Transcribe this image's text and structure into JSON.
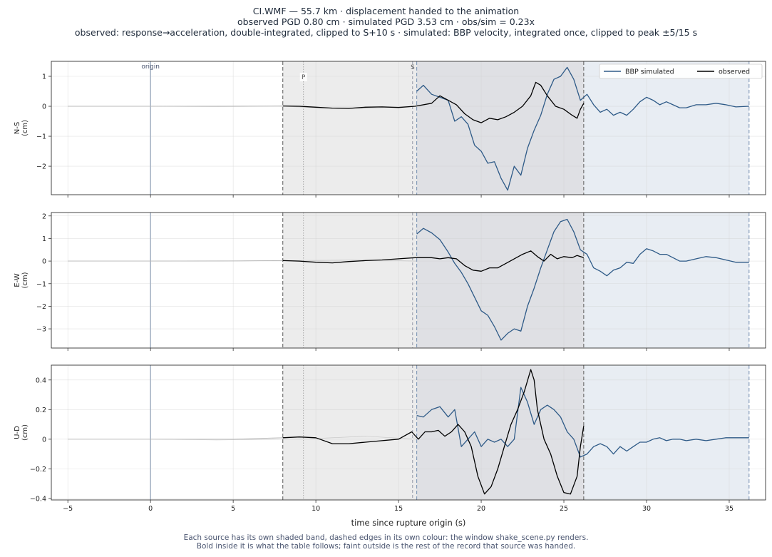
{
  "header": {
    "title": "CI.WMF  —  55.7 km   ·   displacement handed to the animation",
    "subtitle": "observed PGD 0.80 cm   ·   simulated PGD 3.53 cm   ·   obs/sim = 0.23x",
    "detail": "observed: response→acceleration, double-integrated, clipped to S+10 s   ·   simulated: BBP velocity, integrated once, clipped to peak ±5/15 s"
  },
  "footer": {
    "line1": "Each source has its own shaded band, dashed edges in its own colour: the window shake_scene.py renders.",
    "line2": "Bold inside it is what the table follows;   faint outside is the rest of the record that source was handed."
  },
  "colors": {
    "simulated": "#2e5a87",
    "observed": "#000000",
    "obs_band": "#ececec",
    "sim_band": "#e8edf3",
    "overlap_band": "#dfe0e4",
    "obs_edge": "#666666",
    "sim_edge": "#7f97b6",
    "origin_line": "#a9b5c6",
    "faint_trace": "#b8b8b8"
  },
  "chart_data": {
    "type": "line",
    "xlabel": "time since rupture origin (s)",
    "xlim": [
      -6,
      37.2
    ],
    "xticks": [
      -5,
      0,
      5,
      10,
      15,
      20,
      25,
      30,
      35
    ],
    "legend": {
      "placement": "top-right",
      "entries": [
        "BBP simulated",
        "observed"
      ]
    },
    "markers": {
      "origin": 0,
      "origin_label": "origin",
      "P": 9.25,
      "P_label": "P",
      "S": 15.85,
      "S_label": "S"
    },
    "windows": {
      "observed": [
        8.0,
        26.2
      ],
      "simulated": [
        16.1,
        36.2
      ]
    },
    "grid": true,
    "panels": [
      {
        "name": "N-S",
        "ylabel": [
          "N-S",
          "(cm)"
        ],
        "ylim": [
          -2.95,
          1.5
        ],
        "yticks": [
          -2,
          -1,
          0,
          1
        ],
        "observed": [
          [
            -5,
            0
          ],
          [
            0,
            0
          ],
          [
            5,
            0.005
          ],
          [
            8,
            0.01
          ],
          [
            9,
            0.0
          ],
          [
            10,
            -0.03
          ],
          [
            11,
            -0.06
          ],
          [
            12,
            -0.07
          ],
          [
            13,
            -0.03
          ],
          [
            14,
            -0.02
          ],
          [
            15,
            -0.04
          ],
          [
            16,
            0.0
          ],
          [
            17,
            0.1
          ],
          [
            17.5,
            0.35
          ],
          [
            18,
            0.2
          ],
          [
            18.5,
            0.05
          ],
          [
            19,
            -0.25
          ],
          [
            19.5,
            -0.45
          ],
          [
            20,
            -0.55
          ],
          [
            20.5,
            -0.4
          ],
          [
            21,
            -0.45
          ],
          [
            21.5,
            -0.35
          ],
          [
            22,
            -0.2
          ],
          [
            22.5,
            0.0
          ],
          [
            23,
            0.35
          ],
          [
            23.3,
            0.8
          ],
          [
            23.6,
            0.7
          ],
          [
            24,
            0.35
          ],
          [
            24.5,
            0.0
          ],
          [
            25,
            -0.1
          ],
          [
            25.5,
            -0.3
          ],
          [
            25.8,
            -0.4
          ],
          [
            26,
            -0.1
          ],
          [
            26.2,
            0.1
          ]
        ],
        "simulated": [
          [
            16.1,
            0.5
          ],
          [
            16.5,
            0.7
          ],
          [
            17,
            0.4
          ],
          [
            17.5,
            0.3
          ],
          [
            18,
            0.2
          ],
          [
            18.4,
            -0.5
          ],
          [
            18.8,
            -0.35
          ],
          [
            19.2,
            -0.6
          ],
          [
            19.6,
            -1.3
          ],
          [
            20,
            -1.5
          ],
          [
            20.4,
            -1.9
          ],
          [
            20.8,
            -1.85
          ],
          [
            21.2,
            -2.4
          ],
          [
            21.6,
            -2.8
          ],
          [
            22,
            -2.0
          ],
          [
            22.4,
            -2.3
          ],
          [
            22.8,
            -1.4
          ],
          [
            23.2,
            -0.8
          ],
          [
            23.6,
            -0.3
          ],
          [
            24,
            0.4
          ],
          [
            24.4,
            0.9
          ],
          [
            24.8,
            1.0
          ],
          [
            25.2,
            1.3
          ],
          [
            25.6,
            0.9
          ],
          [
            26,
            0.2
          ],
          [
            26.4,
            0.4
          ],
          [
            26.8,
            0.05
          ],
          [
            27.2,
            -0.2
          ],
          [
            27.6,
            -0.1
          ],
          [
            28,
            -0.3
          ],
          [
            28.4,
            -0.2
          ],
          [
            28.8,
            -0.3
          ],
          [
            29.2,
            -0.1
          ],
          [
            29.6,
            0.15
          ],
          [
            30,
            0.3
          ],
          [
            30.4,
            0.2
          ],
          [
            30.8,
            0.05
          ],
          [
            31.2,
            0.15
          ],
          [
            31.6,
            0.05
          ],
          [
            32,
            -0.05
          ],
          [
            32.4,
            -0.05
          ],
          [
            33,
            0.05
          ],
          [
            33.6,
            0.05
          ],
          [
            34.2,
            0.1
          ],
          [
            34.8,
            0.05
          ],
          [
            35.4,
            -0.02
          ],
          [
            36.2,
            0.0
          ]
        ],
        "simulated_early": [
          [
            -5,
            0
          ],
          [
            0,
            0
          ],
          [
            4,
            -0.01
          ],
          [
            8,
            0.0
          ],
          [
            10,
            -0.05
          ],
          [
            13,
            -0.07
          ],
          [
            16.1,
            0.0
          ]
        ]
      },
      {
        "name": "E-W",
        "ylabel": [
          "E-W",
          "(cm)"
        ],
        "ylim": [
          -3.85,
          2.15
        ],
        "yticks": [
          -3,
          -2,
          -1,
          0,
          1,
          2
        ],
        "observed": [
          [
            -5,
            0
          ],
          [
            0,
            0
          ],
          [
            5,
            0.01
          ],
          [
            8,
            0.02
          ],
          [
            9,
            0.0
          ],
          [
            10,
            -0.05
          ],
          [
            11,
            -0.08
          ],
          [
            12,
            -0.02
          ],
          [
            13,
            0.02
          ],
          [
            14,
            0.05
          ],
          [
            15,
            0.1
          ],
          [
            16,
            0.15
          ],
          [
            17,
            0.15
          ],
          [
            17.5,
            0.1
          ],
          [
            18,
            0.15
          ],
          [
            18.5,
            0.1
          ],
          [
            19,
            -0.2
          ],
          [
            19.5,
            -0.4
          ],
          [
            20,
            -0.45
          ],
          [
            20.5,
            -0.3
          ],
          [
            21,
            -0.3
          ],
          [
            21.5,
            -0.1
          ],
          [
            22,
            0.1
          ],
          [
            22.5,
            0.3
          ],
          [
            23,
            0.45
          ],
          [
            23.4,
            0.2
          ],
          [
            23.8,
            0.0
          ],
          [
            24.2,
            0.3
          ],
          [
            24.6,
            0.1
          ],
          [
            25,
            0.2
          ],
          [
            25.5,
            0.15
          ],
          [
            25.8,
            0.25
          ],
          [
            26.2,
            0.15
          ]
        ],
        "simulated": [
          [
            16.1,
            1.2
          ],
          [
            16.5,
            1.45
          ],
          [
            17,
            1.25
          ],
          [
            17.5,
            0.95
          ],
          [
            18,
            0.4
          ],
          [
            18.4,
            -0.1
          ],
          [
            18.8,
            -0.5
          ],
          [
            19.2,
            -1.0
          ],
          [
            19.6,
            -1.6
          ],
          [
            20,
            -2.2
          ],
          [
            20.4,
            -2.4
          ],
          [
            20.8,
            -2.9
          ],
          [
            21.2,
            -3.5
          ],
          [
            21.6,
            -3.2
          ],
          [
            22,
            -3.0
          ],
          [
            22.4,
            -3.1
          ],
          [
            22.8,
            -2.0
          ],
          [
            23.2,
            -1.2
          ],
          [
            23.6,
            -0.3
          ],
          [
            24,
            0.5
          ],
          [
            24.4,
            1.3
          ],
          [
            24.8,
            1.75
          ],
          [
            25.2,
            1.85
          ],
          [
            25.6,
            1.3
          ],
          [
            26,
            0.5
          ],
          [
            26.4,
            0.3
          ],
          [
            26.8,
            -0.3
          ],
          [
            27.2,
            -0.45
          ],
          [
            27.6,
            -0.65
          ],
          [
            28,
            -0.4
          ],
          [
            28.4,
            -0.3
          ],
          [
            28.8,
            -0.05
          ],
          [
            29.2,
            -0.1
          ],
          [
            29.6,
            0.3
          ],
          [
            30,
            0.55
          ],
          [
            30.4,
            0.45
          ],
          [
            30.8,
            0.3
          ],
          [
            31.2,
            0.3
          ],
          [
            31.6,
            0.15
          ],
          [
            32,
            0.0
          ],
          [
            32.4,
            0.0
          ],
          [
            33,
            0.1
          ],
          [
            33.6,
            0.2
          ],
          [
            34.2,
            0.15
          ],
          [
            34.8,
            0.05
          ],
          [
            35.4,
            -0.05
          ],
          [
            36.2,
            -0.05
          ]
        ],
        "simulated_early": [
          [
            -5,
            0
          ],
          [
            0,
            0
          ],
          [
            4,
            0.0
          ],
          [
            8,
            0.02
          ],
          [
            10,
            0.03
          ],
          [
            13,
            0.05
          ],
          [
            16.1,
            0.0
          ]
        ]
      },
      {
        "name": "U-D",
        "ylabel": [
          "U-D",
          "(cm)"
        ],
        "ylim": [
          -0.41,
          0.5
        ],
        "yticks": [
          -0.4,
          -0.2,
          0.0,
          0.2,
          0.4
        ],
        "observed": [
          [
            -5,
            0
          ],
          [
            0,
            0
          ],
          [
            5,
            0.0
          ],
          [
            8,
            0.01
          ],
          [
            9,
            0.015
          ],
          [
            10,
            0.01
          ],
          [
            11,
            -0.03
          ],
          [
            12,
            -0.03
          ],
          [
            13,
            -0.02
          ],
          [
            14,
            -0.01
          ],
          [
            15,
            0.0
          ],
          [
            15.8,
            0.05
          ],
          [
            16.2,
            0.0
          ],
          [
            16.6,
            0.05
          ],
          [
            17,
            0.05
          ],
          [
            17.4,
            0.06
          ],
          [
            17.8,
            0.02
          ],
          [
            18.2,
            0.05
          ],
          [
            18.6,
            0.1
          ],
          [
            19,
            0.05
          ],
          [
            19.4,
            -0.05
          ],
          [
            19.8,
            -0.25
          ],
          [
            20.2,
            -0.37
          ],
          [
            20.6,
            -0.32
          ],
          [
            21,
            -0.2
          ],
          [
            21.4,
            -0.05
          ],
          [
            21.8,
            0.1
          ],
          [
            22.2,
            0.2
          ],
          [
            22.6,
            0.32
          ],
          [
            23,
            0.47
          ],
          [
            23.2,
            0.4
          ],
          [
            23.4,
            0.2
          ],
          [
            23.8,
            0.0
          ],
          [
            24.2,
            -0.1
          ],
          [
            24.6,
            -0.25
          ],
          [
            25,
            -0.36
          ],
          [
            25.4,
            -0.37
          ],
          [
            25.8,
            -0.25
          ],
          [
            26.0,
            -0.05
          ],
          [
            26.2,
            0.09
          ]
        ],
        "simulated": [
          [
            16.1,
            0.16
          ],
          [
            16.5,
            0.15
          ],
          [
            17,
            0.2
          ],
          [
            17.5,
            0.22
          ],
          [
            18,
            0.15
          ],
          [
            18.4,
            0.2
          ],
          [
            18.8,
            -0.05
          ],
          [
            19.2,
            0.0
          ],
          [
            19.6,
            0.05
          ],
          [
            20,
            -0.05
          ],
          [
            20.4,
            0.0
          ],
          [
            20.8,
            -0.02
          ],
          [
            21.2,
            0.0
          ],
          [
            21.6,
            -0.05
          ],
          [
            22,
            0.0
          ],
          [
            22.4,
            0.35
          ],
          [
            22.8,
            0.25
          ],
          [
            23.2,
            0.1
          ],
          [
            23.6,
            0.2
          ],
          [
            24,
            0.23
          ],
          [
            24.4,
            0.2
          ],
          [
            24.8,
            0.15
          ],
          [
            25.2,
            0.05
          ],
          [
            25.6,
            0.0
          ],
          [
            26,
            -0.12
          ],
          [
            26.4,
            -0.1
          ],
          [
            26.8,
            -0.05
          ],
          [
            27.2,
            -0.03
          ],
          [
            27.6,
            -0.05
          ],
          [
            28,
            -0.1
          ],
          [
            28.4,
            -0.05
          ],
          [
            28.8,
            -0.08
          ],
          [
            29.2,
            -0.05
          ],
          [
            29.6,
            -0.02
          ],
          [
            30,
            -0.02
          ],
          [
            30.4,
            0.0
          ],
          [
            30.8,
            0.01
          ],
          [
            31.2,
            -0.01
          ],
          [
            31.6,
            0.0
          ],
          [
            32,
            0.0
          ],
          [
            32.4,
            -0.01
          ],
          [
            33,
            0.0
          ],
          [
            33.6,
            -0.01
          ],
          [
            34.2,
            0.0
          ],
          [
            34.8,
            0.01
          ],
          [
            35.4,
            0.01
          ],
          [
            36.2,
            0.01
          ]
        ],
        "simulated_early": [
          [
            -5,
            0
          ],
          [
            0,
            0
          ],
          [
            4,
            -0.005
          ],
          [
            8,
            0.0
          ],
          [
            10,
            0.005
          ],
          [
            13,
            0.02
          ],
          [
            16.1,
            0.0
          ]
        ]
      }
    ]
  }
}
